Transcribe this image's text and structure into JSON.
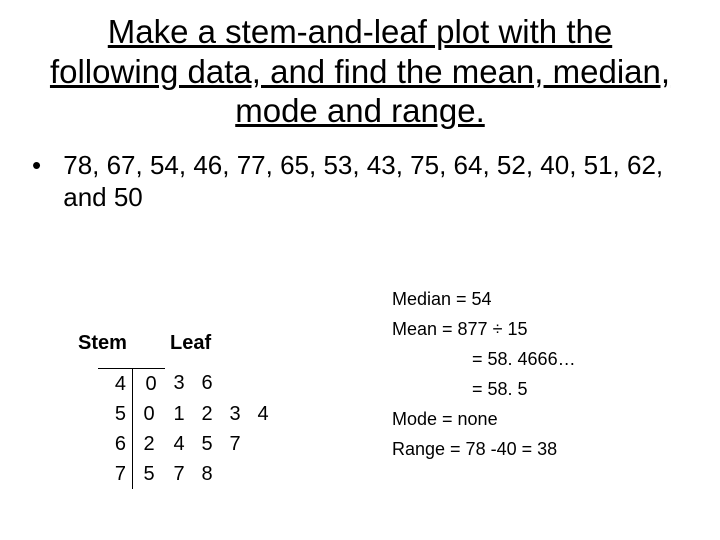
{
  "title": "Make a stem-and-leaf plot with the following data, and find the mean, median, mode and range.",
  "bullet": "78, 67, 54, 46, 77, 65, 53, 43, 75, 64, 52, 40, 51, 62, and 50",
  "headers": {
    "stem": "Stem",
    "leaf": "Leaf"
  },
  "stemleaf": {
    "stems": [
      "4",
      "5",
      "6",
      "7"
    ],
    "leaves": [
      [
        "0",
        "3",
        "6",
        "",
        ""
      ],
      [
        "0",
        "1",
        "2",
        "3",
        "4"
      ],
      [
        "2",
        "4",
        "5",
        "7",
        ""
      ],
      [
        "5",
        "7",
        "8",
        "",
        ""
      ]
    ]
  },
  "stats": {
    "median": "Median = 54",
    "mean1": "Mean = 877 ÷ 15",
    "mean2": "= 58. 4666…",
    "mean3": "= 58. 5",
    "mode": "Mode = none",
    "range": "Range = 78 -40 = 38"
  },
  "style": {
    "background_color": "#ffffff",
    "text_color": "#000000",
    "title_fontsize": 33,
    "body_fontsize": 26,
    "table_fontsize": 20,
    "stats_fontsize": 18,
    "font_family": "Arial"
  }
}
